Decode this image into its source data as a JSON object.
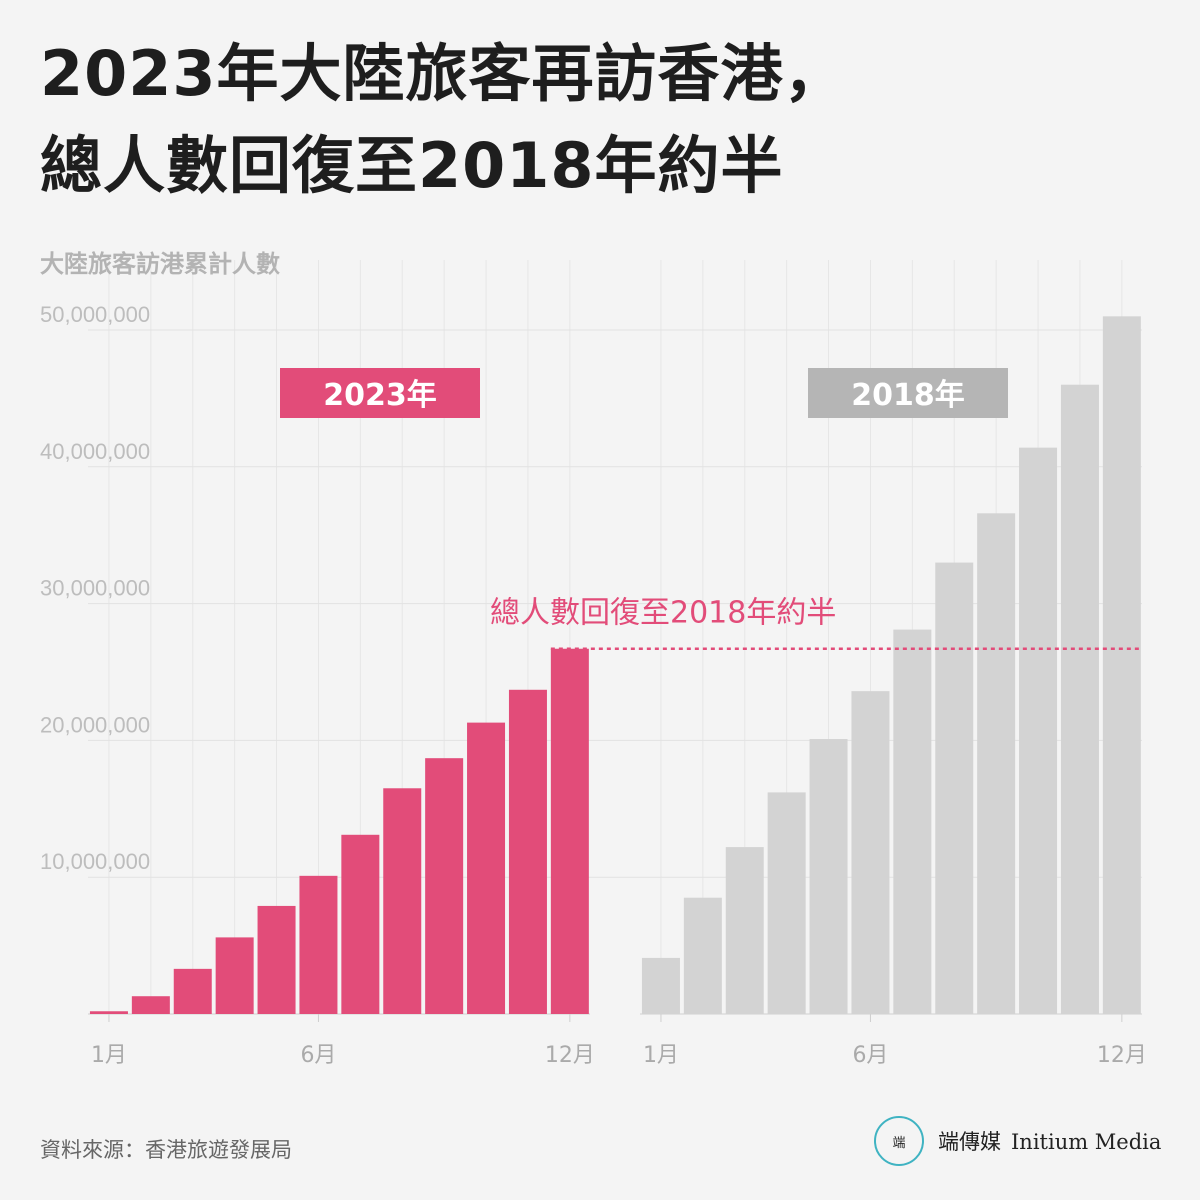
{
  "title": {
    "line1": "2023年大陸旅客再訪香港，",
    "line2": "總人數回復至2018年約半"
  },
  "chart_data": {
    "type": "bar",
    "ylabel": "大陸旅客訪港累計人數",
    "ylim": [
      0,
      52000000
    ],
    "yticks": [
      10000000,
      20000000,
      30000000,
      40000000,
      50000000
    ],
    "ytick_labels": [
      "10,000,000",
      "20,000,000",
      "30,000,000",
      "40,000,000",
      "50,000,000"
    ],
    "grid": true,
    "categories": [
      "1月",
      "2月",
      "3月",
      "4月",
      "5月",
      "6月",
      "7月",
      "8月",
      "9月",
      "10月",
      "11月",
      "12月"
    ],
    "xtick_labels": {
      "1月": "1月",
      "6月": "6月",
      "12月": "12月"
    },
    "series": [
      {
        "name": "2023年",
        "color": "#e24c79",
        "values": [
          200000,
          1300000,
          3300000,
          5600000,
          7900000,
          10100000,
          13100000,
          16500000,
          18700000,
          21300000,
          23700000,
          26700000
        ]
      },
      {
        "name": "2018年",
        "color": "#d3d3d3",
        "label_color": "#b5b5b5",
        "values": [
          4100000,
          8500000,
          12200000,
          16200000,
          20100000,
          23600000,
          28100000,
          33000000,
          36600000,
          41400000,
          46000000,
          51000000
        ]
      }
    ],
    "annotation": {
      "text": "總人數回復至2018年約半",
      "value": 26700000,
      "color": "#e24c79"
    }
  },
  "footer": {
    "source": "資料來源：香港旅遊發展局",
    "logo_mark": "端",
    "logo_zh": "端傳媒",
    "logo_en": "Initium Media"
  }
}
